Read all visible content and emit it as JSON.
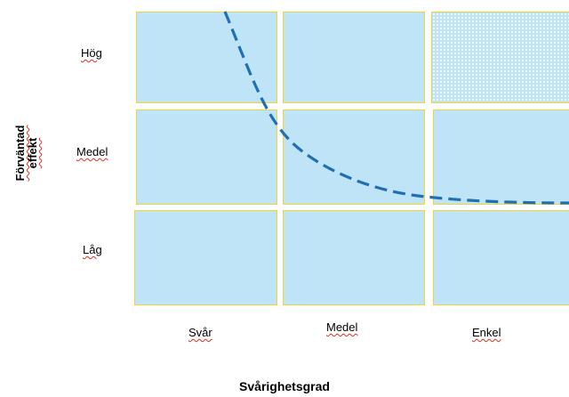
{
  "y_axis": {
    "title_line1": "Förväntad",
    "title_line2": "effekt",
    "levels": [
      "Hög",
      "Medel",
      "Låg"
    ]
  },
  "x_axis": {
    "title": "Svårighetsgrad",
    "levels": [
      "Svår",
      "Medel",
      "Enkel"
    ]
  },
  "colors": {
    "cell_fill": "#bfe3f7",
    "cell_border": "#f2d433",
    "curve": "#1f6fb5",
    "spell_underline": "#d93025"
  },
  "curve_style": "dashed"
}
